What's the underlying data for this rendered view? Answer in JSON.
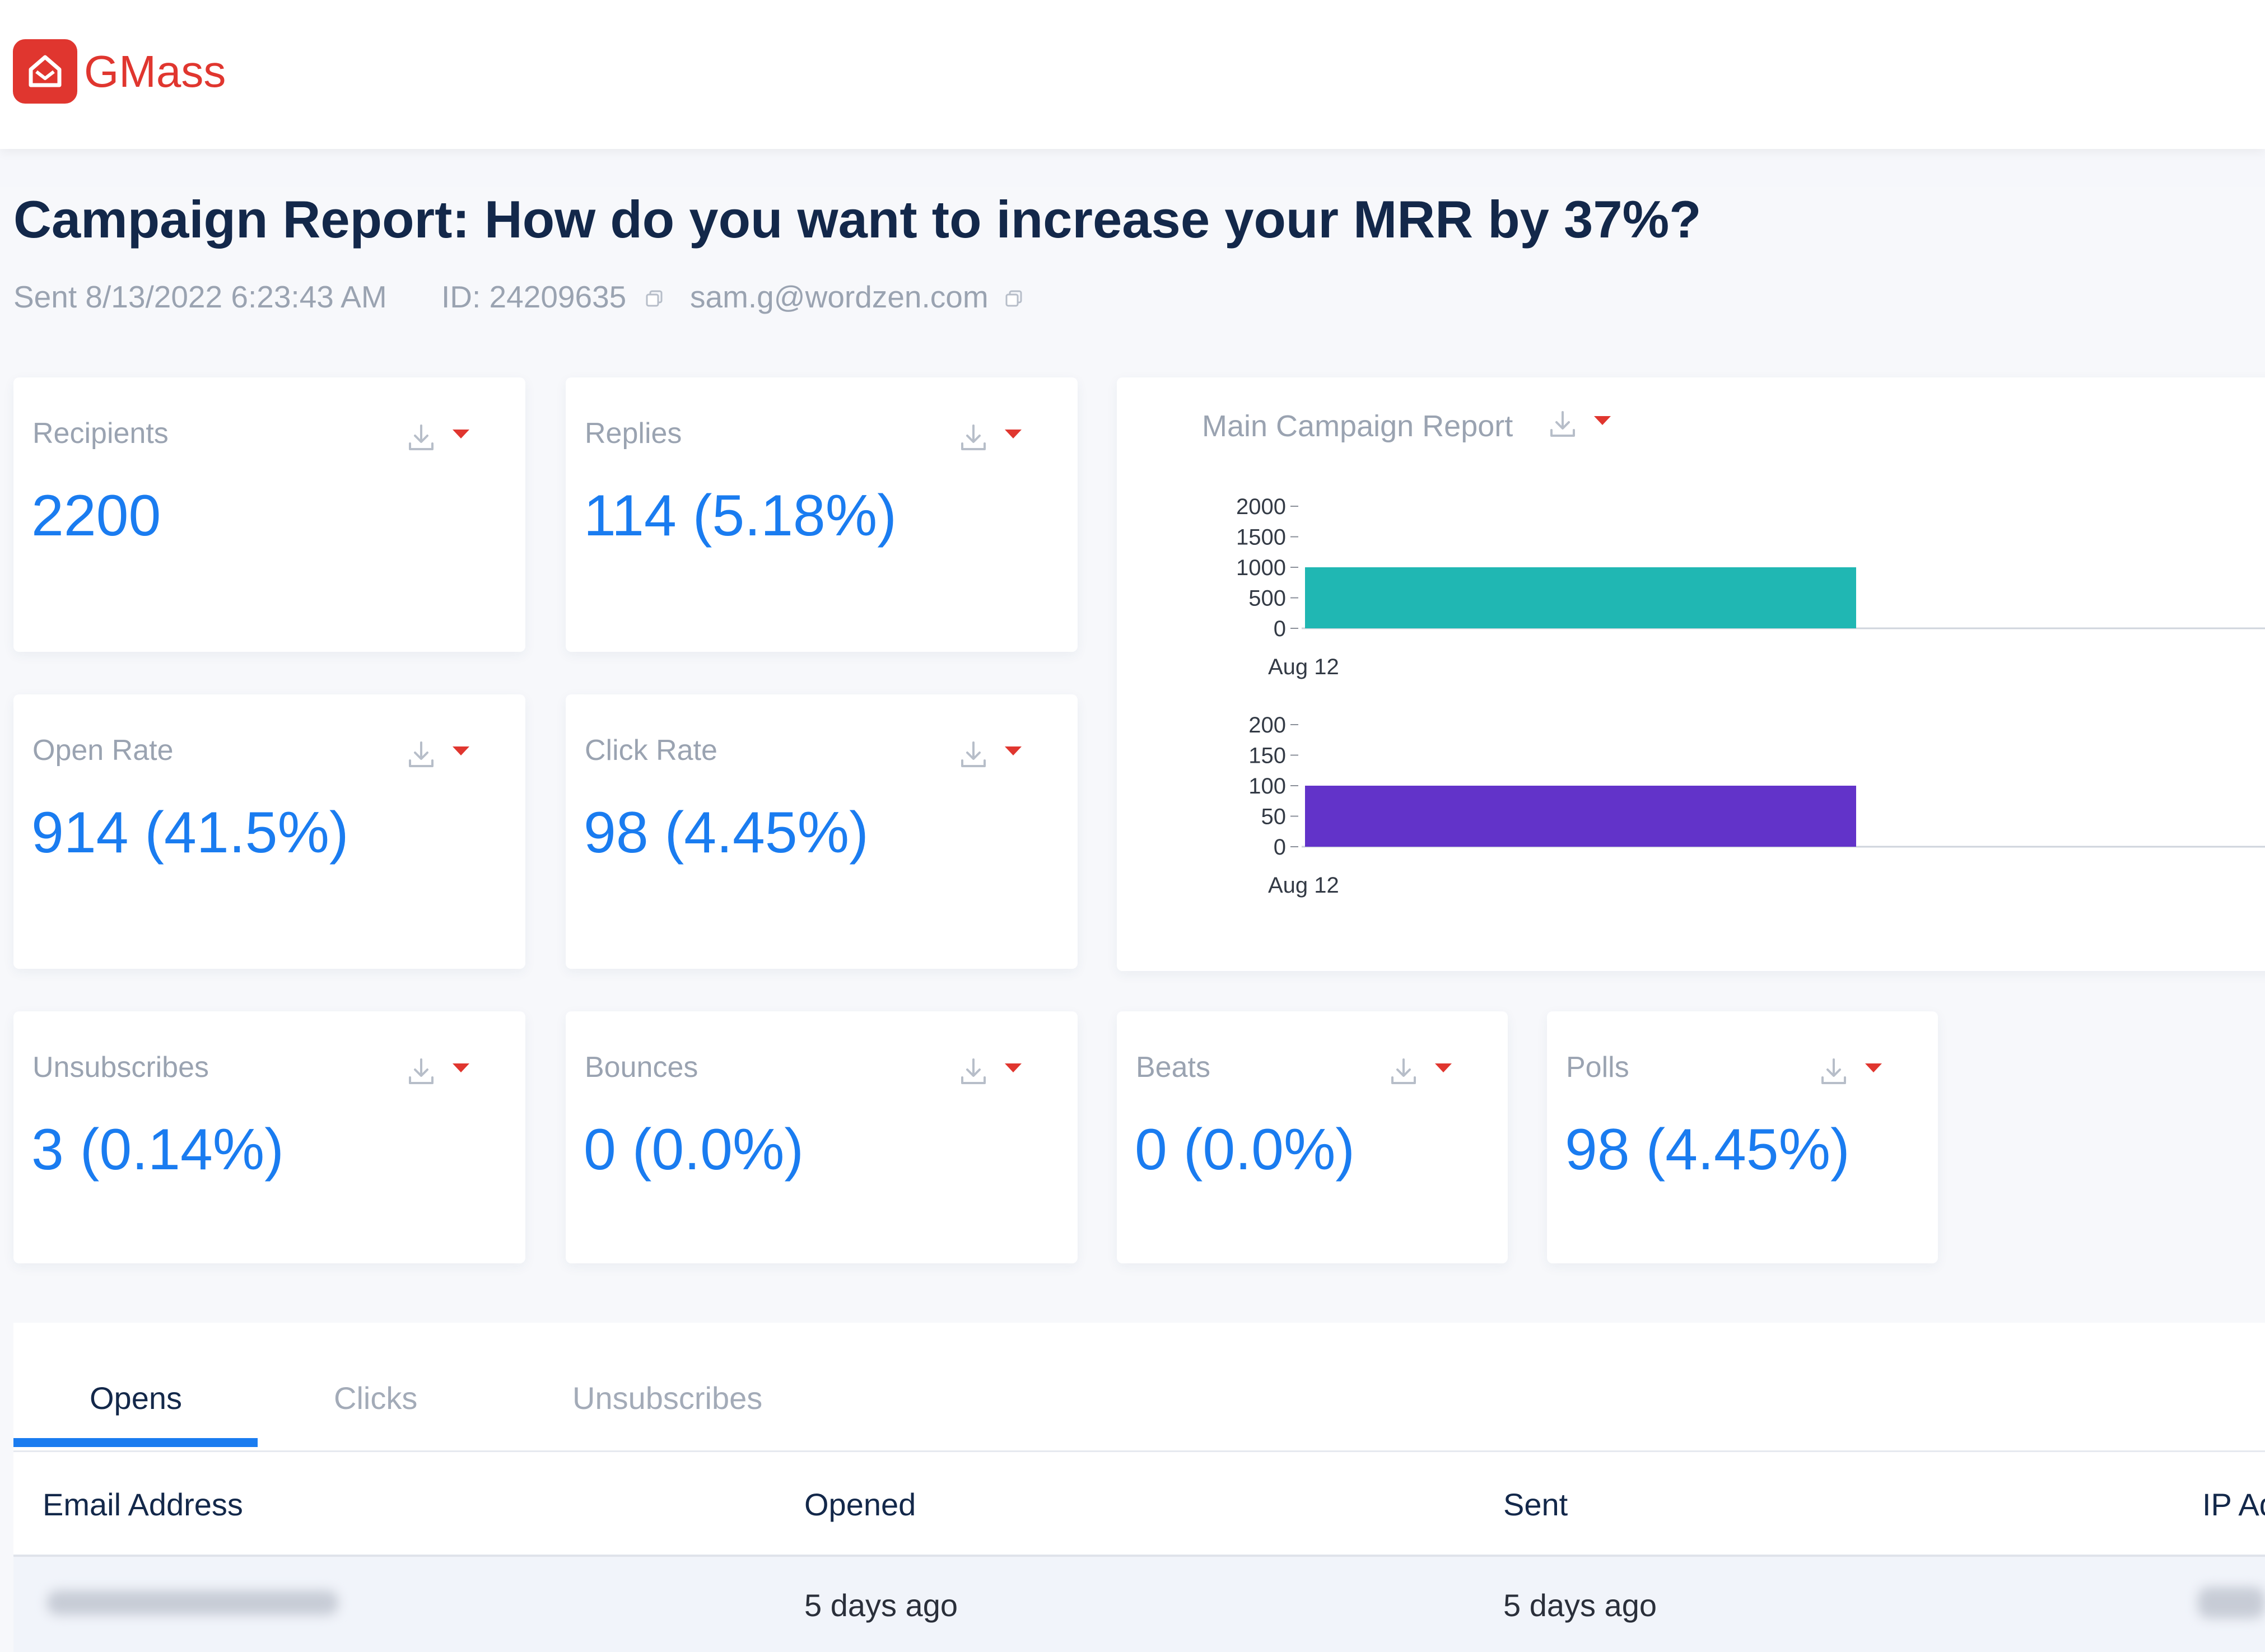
{
  "brand": {
    "name": "GMass",
    "logo_icon": "gmass-logo-icon",
    "color": "#e0362f"
  },
  "report": {
    "title": "Campaign Report: How do you want to increase your MRR by 37%?",
    "sent": "Sent 8/13/2022 6:23:43 AM",
    "id": "ID: 24209635",
    "email": "sam.g@wordzen.com"
  },
  "stats": {
    "recipients": {
      "label": "Recipients",
      "value": "2200"
    },
    "replies": {
      "label": "Replies",
      "value": "114 (5.18%)"
    },
    "open_rate": {
      "label": "Open Rate",
      "value": "914 (41.5%)"
    },
    "click_rate": {
      "label": "Click Rate",
      "value": "98 (4.45%)"
    },
    "unsubscribes": {
      "label": "Unsubscribes",
      "value": "3 (0.14%)"
    },
    "bounces": {
      "label": "Bounces",
      "value": "0 (0.0%)"
    },
    "beats": {
      "label": "Beats",
      "value": "0 (0.0%)"
    },
    "polls": {
      "label": "Polls",
      "value": "98 (4.45%)"
    }
  },
  "accent_color": "#1a7cf0",
  "chart_card": {
    "title": "Main Campaign Report"
  },
  "chart_data": [
    {
      "type": "bar",
      "categories": [
        "Aug 12"
      ],
      "values": [
        1000
      ],
      "ylim": [
        0,
        2000
      ],
      "yticks": [
        "2000",
        "1500",
        "1000",
        "500",
        "0"
      ],
      "color": "#20b7b3"
    },
    {
      "type": "bar",
      "categories": [
        "Aug 12"
      ],
      "values": [
        100
      ],
      "ylim": [
        0,
        200
      ],
      "yticks": [
        "200",
        "150",
        "100",
        "50",
        "0"
      ],
      "color": "#6233c9"
    }
  ],
  "tabs": [
    {
      "label": "Opens",
      "active": true
    },
    {
      "label": "Clicks",
      "active": false
    },
    {
      "label": "Unsubscribes",
      "active": false
    }
  ],
  "table": {
    "headers": [
      "Email Address",
      "Opened",
      "Sent",
      "IP Ad"
    ],
    "rows": [
      {
        "email": "",
        "opened": "5 days ago",
        "sent": "5 days ago",
        "ip": ""
      }
    ]
  }
}
